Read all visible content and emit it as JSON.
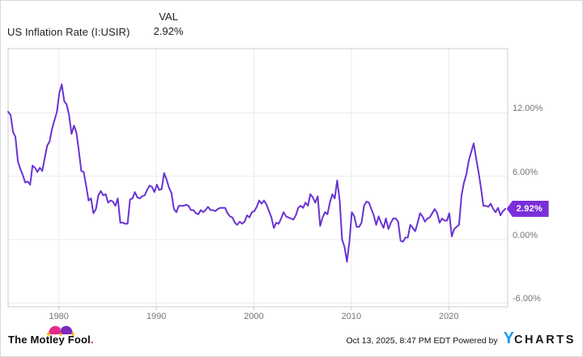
{
  "header": {
    "title": "US Inflation Rate (I:USIR)",
    "col_label": "VAL",
    "value": "2.92%"
  },
  "chart_data": {
    "type": "line",
    "title": "US Inflation Rate (I:USIR)",
    "series_name": "US Inflation Rate",
    "unit": "percent",
    "line_color": "#6934d3",
    "badge_color": "#7a2fd9",
    "grid": true,
    "legend_position": "none",
    "x_start": 1974.8,
    "x_step": 0.25,
    "values": [
      12.1,
      11.8,
      10.2,
      9.7,
      7.4,
      6.7,
      6.1,
      5.4,
      5.5,
      5.2,
      7.0,
      6.8,
      6.4,
      6.8,
      6.5,
      7.7,
      8.9,
      9.3,
      10.5,
      11.3,
      12.1,
      13.9,
      14.7,
      13.1,
      12.8,
      11.8,
      10.0,
      10.8,
      10.1,
      8.4,
      6.5,
      6.4,
      5.1,
      3.7,
      3.9,
      2.5,
      2.9,
      4.2,
      4.6,
      4.2,
      4.3,
      3.5,
      3.7,
      3.6,
      3.2,
      3.9,
      1.6,
      1.6,
      1.5,
      1.5,
      3.8,
      3.9,
      4.5,
      4.0,
      3.9,
      4.1,
      4.2,
      4.7,
      5.1,
      5.0,
      4.5,
      5.2,
      4.7,
      4.8,
      6.3,
      5.7,
      4.9,
      4.4,
      2.9,
      2.6,
      3.2,
      3.2,
      3.2,
      3.3,
      3.2,
      2.8,
      2.8,
      2.5,
      2.4,
      2.8,
      2.6,
      2.8,
      3.1,
      2.8,
      2.8,
      2.7,
      2.9,
      3.0,
      3.0,
      3.0,
      2.5,
      2.2,
      2.1,
      1.6,
      1.4,
      1.7,
      1.5,
      1.7,
      2.3,
      2.1,
      2.6,
      2.7,
      3.1,
      3.7,
      3.4,
      3.7,
      3.3,
      2.7,
      2.1,
      1.1,
      1.6,
      1.5,
      2.0,
      2.6,
      2.2,
      2.1,
      2.0,
      1.9,
      2.3,
      3.0,
      3.2,
      3.0,
      3.5,
      3.2,
      4.3,
      4.0,
      3.5,
      4.1,
      1.3,
      2.1,
      2.6,
      2.4,
      3.5,
      4.3,
      3.9,
      5.6,
      3.7,
      0.0,
      -0.7,
      -2.1,
      -0.2,
      2.6,
      2.2,
      1.2,
      1.2,
      1.6,
      3.2,
      3.6,
      3.5,
      2.9,
      2.3,
      1.4,
      2.2,
      1.6,
      1.1,
      2.0,
      1.0,
      1.6,
      2.0,
      2.0,
      1.7,
      -0.1,
      -0.2,
      0.2,
      0.2,
      1.4,
      1.1,
      0.8,
      1.6,
      2.5,
      2.2,
      1.7,
      2.0,
      2.1,
      2.5,
      2.9,
      2.5,
      1.6,
      2.0,
      1.8,
      1.8,
      2.5,
      0.3,
      1.0,
      1.2,
      1.4,
      4.2,
      5.4,
      6.2,
      7.5,
      8.3,
      9.1,
      7.7,
      6.4,
      4.9,
      3.2,
      3.2,
      3.1,
      3.4,
      2.9,
      2.6,
      3.0,
      2.3,
      2.7,
      2.92
    ],
    "last_value": 2.92,
    "last_value_label": "2.92%",
    "x_ticks": [
      1980,
      1990,
      2000,
      2010,
      2020
    ],
    "x_tick_labels": [
      "1980",
      "1990",
      "2000",
      "2010",
      "2020"
    ],
    "y_ticks": [
      12,
      6,
      0,
      -6
    ],
    "y_tick_labels": [
      "12.00%",
      "6.00%",
      "0.00%",
      "-6.00%"
    ],
    "x_axis_range": [
      1974.8,
      2026.5
    ],
    "y_axis_range": [
      -6.5,
      18.1
    ]
  },
  "footer": {
    "brand_text": "The Motley Fool",
    "brand_period": ".",
    "timestamp": "Oct 13, 2025, 8:47 PM EDT Powered by",
    "ycharts_y": "Y",
    "ycharts_rest": "CHARTS"
  }
}
